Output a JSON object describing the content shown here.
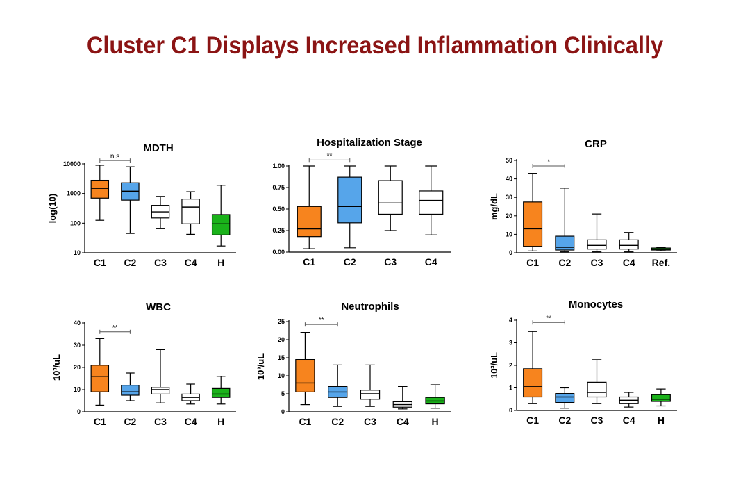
{
  "slide": {
    "title": "Cluster C1 Displays Increased Inflammation Clinically"
  },
  "colors": {
    "title": "#8b1414",
    "C1": "#f7841e",
    "C2": "#56a5ea",
    "other": "#ffffff",
    "healthy": "#1ab21a"
  },
  "chart_data": [
    {
      "type": "box",
      "title": "MDTH",
      "ylabel": "log(10)",
      "yscale": "log",
      "ylim": [
        10,
        10000
      ],
      "yticks": [
        10,
        100,
        1000,
        10000
      ],
      "categories": [
        "C1",
        "C2",
        "C3",
        "C4",
        "H"
      ],
      "fills": [
        "#f7841e",
        "#56a5ea",
        "#ffffff",
        "#ffffff",
        "#1ab21a"
      ],
      "boxes": [
        {
          "min": 125,
          "q1": 700,
          "median": 1500,
          "q3": 2800,
          "max": 9000
        },
        {
          "min": 45,
          "q1": 600,
          "median": 1200,
          "q3": 2300,
          "max": 8000
        },
        {
          "min": 65,
          "q1": 150,
          "median": 240,
          "q3": 400,
          "max": 800
        },
        {
          "min": 42,
          "q1": 95,
          "median": 350,
          "q3": 650,
          "max": 1150
        },
        {
          "min": 17,
          "q1": 40,
          "median": 95,
          "q3": 195,
          "max": 1900
        }
      ],
      "annotations": [
        {
          "from": 0,
          "to": 1,
          "label": "n.s",
          "value": 13000
        }
      ]
    },
    {
      "type": "box",
      "title": "Hospitalization Stage",
      "ylabel": "",
      "yscale": "linear",
      "ylim": [
        0,
        1.0
      ],
      "yticks": [
        "0.00",
        "0.25",
        "0.50",
        "0.75",
        "1.00"
      ],
      "categories": [
        "C1",
        "C2",
        "C3",
        "C4"
      ],
      "fills": [
        "#f7841e",
        "#56a5ea",
        "#ffffff",
        "#ffffff"
      ],
      "boxes": [
        {
          "min": 0.04,
          "q1": 0.18,
          "median": 0.27,
          "q3": 0.53,
          "max": 1.0
        },
        {
          "min": 0.05,
          "q1": 0.34,
          "median": 0.53,
          "q3": 0.87,
          "max": 1.0
        },
        {
          "min": 0.25,
          "q1": 0.44,
          "median": 0.57,
          "q3": 0.83,
          "max": 1.0
        },
        {
          "min": 0.2,
          "q1": 0.44,
          "median": 0.6,
          "q3": 0.71,
          "max": 1.0
        }
      ],
      "annotations": [
        {
          "from": 0,
          "to": 1,
          "label": "**",
          "value": 1.07
        }
      ]
    },
    {
      "type": "box",
      "title": "CRP",
      "ylabel": "mg/dL",
      "yscale": "linear",
      "ylim": [
        0,
        50
      ],
      "yticks": [
        "0",
        "10",
        "20",
        "30",
        "40",
        "50"
      ],
      "categories": [
        "C1",
        "C2",
        "C3",
        "C4",
        "Ref."
      ],
      "fills": [
        "#f7841e",
        "#56a5ea",
        "#ffffff",
        "#ffffff",
        "#1ab21a"
      ],
      "boxes": [
        {
          "min": 1,
          "q1": 3.5,
          "median": 13,
          "q3": 27.5,
          "max": 43
        },
        {
          "min": 0.5,
          "q1": 1.5,
          "median": 3,
          "q3": 9,
          "max": 35
        },
        {
          "min": 0.5,
          "q1": 2,
          "median": 4,
          "q3": 7,
          "max": 21
        },
        {
          "min": 0.5,
          "q1": 2,
          "median": 4,
          "q3": 7,
          "max": 11
        },
        {
          "min": 1,
          "q1": 1.5,
          "median": 2,
          "q3": 2.6,
          "max": 3
        }
      ],
      "annotations": [
        {
          "from": 0,
          "to": 1,
          "label": "*",
          "value": 47
        }
      ]
    },
    {
      "type": "box",
      "title": "WBC",
      "ylabel": "10³/uL",
      "yscale": "linear",
      "ylim": [
        0,
        40
      ],
      "yticks": [
        "0",
        "10",
        "20",
        "30",
        "40"
      ],
      "categories": [
        "C1",
        "C2",
        "C3",
        "C4",
        "H"
      ],
      "fills": [
        "#f7841e",
        "#56a5ea",
        "#ffffff",
        "#ffffff",
        "#1ab21a"
      ],
      "boxes": [
        {
          "min": 3,
          "q1": 9,
          "median": 16,
          "q3": 21,
          "max": 33
        },
        {
          "min": 5,
          "q1": 7.5,
          "median": 9,
          "q3": 12,
          "max": 17.5
        },
        {
          "min": 4,
          "q1": 8,
          "median": 10,
          "q3": 11,
          "max": 28
        },
        {
          "min": 3.5,
          "q1": 5,
          "median": 6.5,
          "q3": 8,
          "max": 12.5
        },
        {
          "min": 3.5,
          "q1": 6.5,
          "median": 8,
          "q3": 10.5,
          "max": 16
        }
      ],
      "annotations": [
        {
          "from": 0,
          "to": 1,
          "label": "**",
          "value": 36
        }
      ]
    },
    {
      "type": "box",
      "title": "Neutrophils",
      "ylabel": "10³/uL",
      "yscale": "linear",
      "ylim": [
        0,
        25
      ],
      "yticks": [
        "0",
        "5",
        "10",
        "15",
        "20",
        "25"
      ],
      "categories": [
        "C1",
        "C2",
        "C3",
        "C4",
        "H"
      ],
      "fills": [
        "#f7841e",
        "#56a5ea",
        "#ffffff",
        "#ffffff",
        "#1ab21a"
      ],
      "boxes": [
        {
          "min": 2,
          "q1": 5.5,
          "median": 8,
          "q3": 14.5,
          "max": 22
        },
        {
          "min": 1.5,
          "q1": 4,
          "median": 5.5,
          "q3": 7,
          "max": 13
        },
        {
          "min": 1.5,
          "q1": 3.5,
          "median": 5,
          "q3": 6,
          "max": 13
        },
        {
          "min": 0.8,
          "q1": 1.3,
          "median": 2,
          "q3": 2.8,
          "max": 7
        },
        {
          "min": 1,
          "q1": 2.2,
          "median": 3,
          "q3": 4,
          "max": 7.5
        }
      ],
      "annotations": [
        {
          "from": 0,
          "to": 1,
          "label": "**",
          "value": 24.2
        }
      ]
    },
    {
      "type": "box",
      "title": "Monocytes",
      "ylabel": "10³/uL",
      "yscale": "linear",
      "ylim": [
        0,
        4
      ],
      "yticks": [
        "0",
        "1",
        "2",
        "3",
        "4"
      ],
      "categories": [
        "C1",
        "C2",
        "C3",
        "C4",
        "H"
      ],
      "fills": [
        "#f7841e",
        "#56a5ea",
        "#ffffff",
        "#ffffff",
        "#1ab21a"
      ],
      "boxes": [
        {
          "min": 0.3,
          "q1": 0.6,
          "median": 1.05,
          "q3": 1.85,
          "max": 3.5
        },
        {
          "min": 0.1,
          "q1": 0.35,
          "median": 0.6,
          "q3": 0.75,
          "max": 1.0
        },
        {
          "min": 0.3,
          "q1": 0.6,
          "median": 0.8,
          "q3": 1.25,
          "max": 2.25
        },
        {
          "min": 0.15,
          "q1": 0.3,
          "median": 0.45,
          "q3": 0.6,
          "max": 0.8
        },
        {
          "min": 0.2,
          "q1": 0.4,
          "median": 0.5,
          "q3": 0.7,
          "max": 0.95
        }
      ],
      "annotations": [
        {
          "from": 0,
          "to": 1,
          "label": "**",
          "value": 3.9
        }
      ]
    }
  ]
}
